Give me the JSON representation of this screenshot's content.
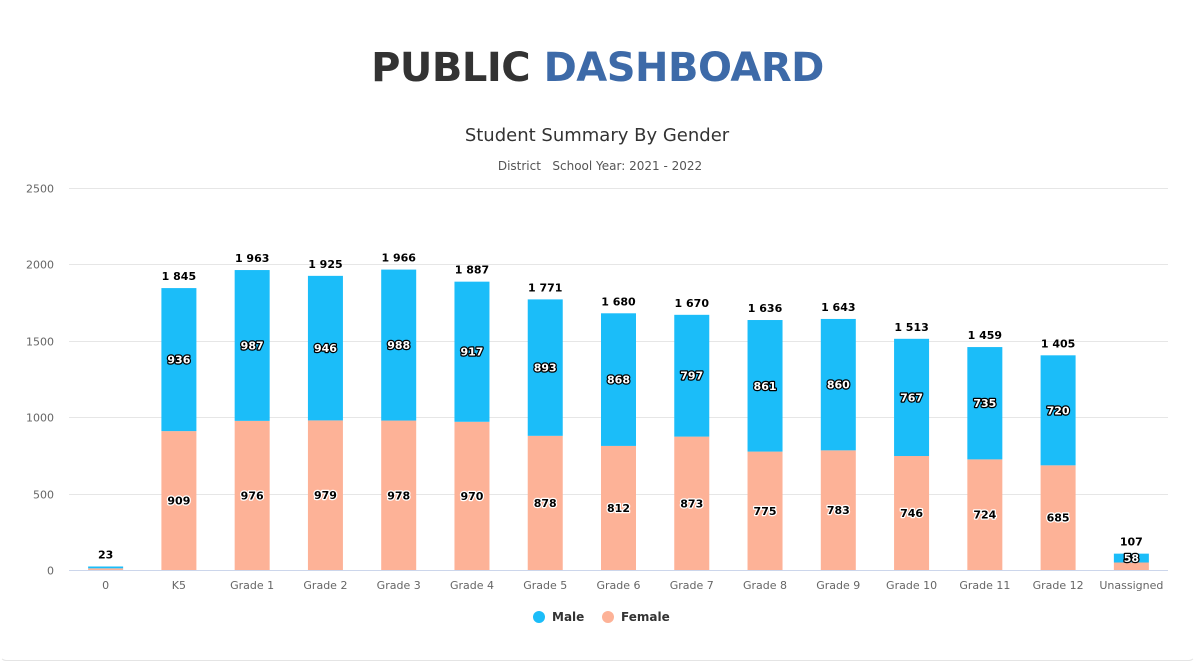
{
  "header": {
    "title_part1": "PUBLIC",
    "title_part2": "DASHBOARD"
  },
  "colors": {
    "male": "#1bbdf9",
    "female": "#fdb297",
    "title_dark": "#333333",
    "title_accent": "#3d6aa8"
  },
  "chart_data": {
    "type": "bar",
    "stacked": true,
    "title": "Student Summary By Gender",
    "subtitle": "District   School Year: 2021 - 2022",
    "xlabel": "",
    "ylabel": "",
    "ylim": [
      0,
      2500
    ],
    "yticks": [
      "0",
      "500",
      "1000",
      "1500",
      "2000",
      "2500"
    ],
    "ytick_values": [
      0,
      500,
      1000,
      1500,
      2000,
      2500
    ],
    "grid": true,
    "legend_position": "bottom",
    "categories": [
      "0",
      "K5",
      "Grade 1",
      "Grade 2",
      "Grade 3",
      "Grade 4",
      "Grade 5",
      "Grade 6",
      "Grade 7",
      "Grade 8",
      "Grade 9",
      "Grade 10",
      "Grade 11",
      "Grade 12",
      "Unassigned"
    ],
    "series": [
      {
        "name": "Male",
        "values": [
          12,
          936,
          987,
          946,
          988,
          917,
          893,
          868,
          797,
          861,
          860,
          767,
          735,
          720,
          58
        ],
        "labels": [
          "",
          "936",
          "987",
          "946",
          "988",
          "917",
          "893",
          "868",
          "797",
          "861",
          "860",
          "767",
          "735",
          "720",
          "58"
        ]
      },
      {
        "name": "Female",
        "values": [
          11,
          909,
          976,
          979,
          978,
          970,
          878,
          812,
          873,
          775,
          783,
          746,
          724,
          685,
          49
        ],
        "labels": [
          "",
          "909",
          "976",
          "979",
          "978",
          "970",
          "878",
          "812",
          "873",
          "775",
          "783",
          "746",
          "724",
          "685",
          ""
        ]
      }
    ],
    "totals": [
      23,
      1845,
      1963,
      1925,
      1966,
      1887,
      1771,
      1680,
      1670,
      1636,
      1643,
      1513,
      1459,
      1405,
      107
    ],
    "total_labels": [
      "23",
      "1 845",
      "1 963",
      "1 925",
      "1 966",
      "1 887",
      "1 771",
      "1 680",
      "1 670",
      "1 636",
      "1 643",
      "1 513",
      "1 459",
      "1 405",
      "107"
    ]
  }
}
